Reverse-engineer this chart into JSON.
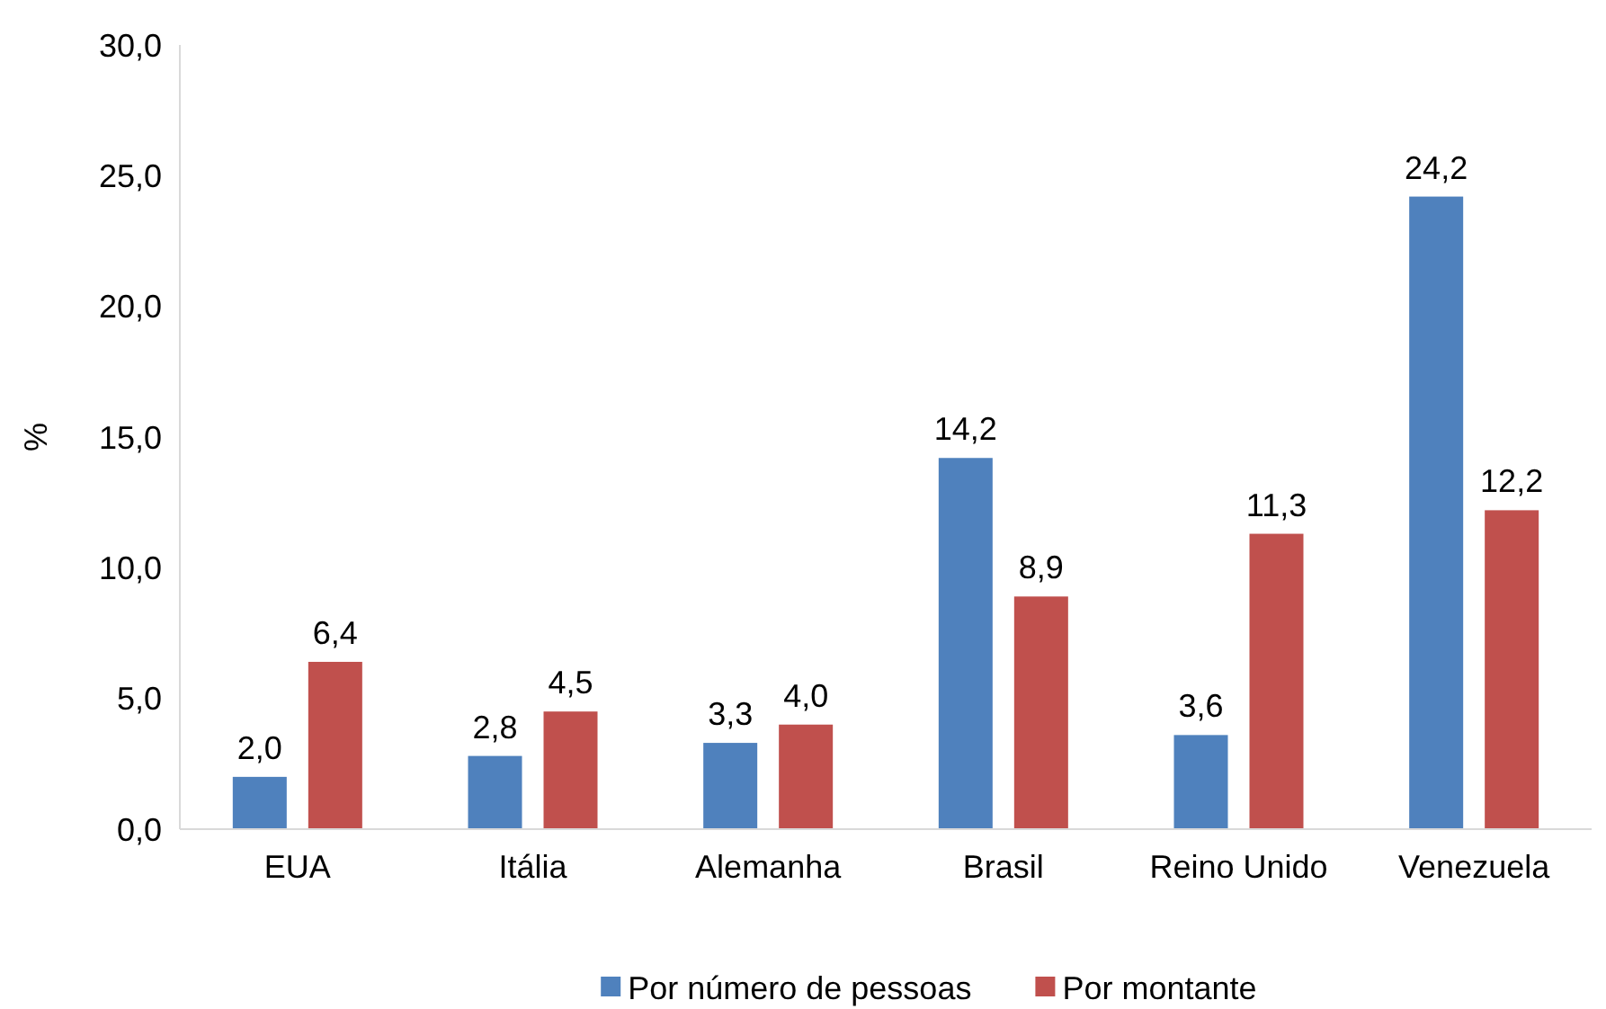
{
  "chart_data": {
    "type": "bar",
    "ylabel": "%",
    "categories": [
      "EUA",
      "Itália",
      "Alemanha",
      "Brasil",
      "Reino Unido",
      "Venezuela"
    ],
    "series": [
      {
        "name": "Por número de pessoas",
        "color": "#4f81bd",
        "values": [
          2.0,
          2.8,
          3.3,
          14.2,
          3.6,
          24.2
        ],
        "value_labels": [
          "2,0",
          "2,8",
          "3,3",
          "14,2",
          "3,6",
          "24,2"
        ]
      },
      {
        "name": "Por montante",
        "color": "#c0504d",
        "values": [
          6.4,
          4.5,
          4.0,
          8.9,
          11.3,
          12.2
        ],
        "value_labels": [
          "6,4",
          "4,5",
          "4,0",
          "8,9",
          "11,3",
          "12,2"
        ]
      }
    ],
    "ylim": [
      0,
      30
    ],
    "yticks": [
      {
        "value": 0,
        "label": "0,0"
      },
      {
        "value": 5,
        "label": "5,0"
      },
      {
        "value": 10,
        "label": "10,0"
      },
      {
        "value": 15,
        "label": "15,0"
      },
      {
        "value": 20,
        "label": "20,0"
      },
      {
        "value": 25,
        "label": "25,0"
      },
      {
        "value": 30,
        "label": "30,0"
      }
    ],
    "legend": "bottom"
  }
}
